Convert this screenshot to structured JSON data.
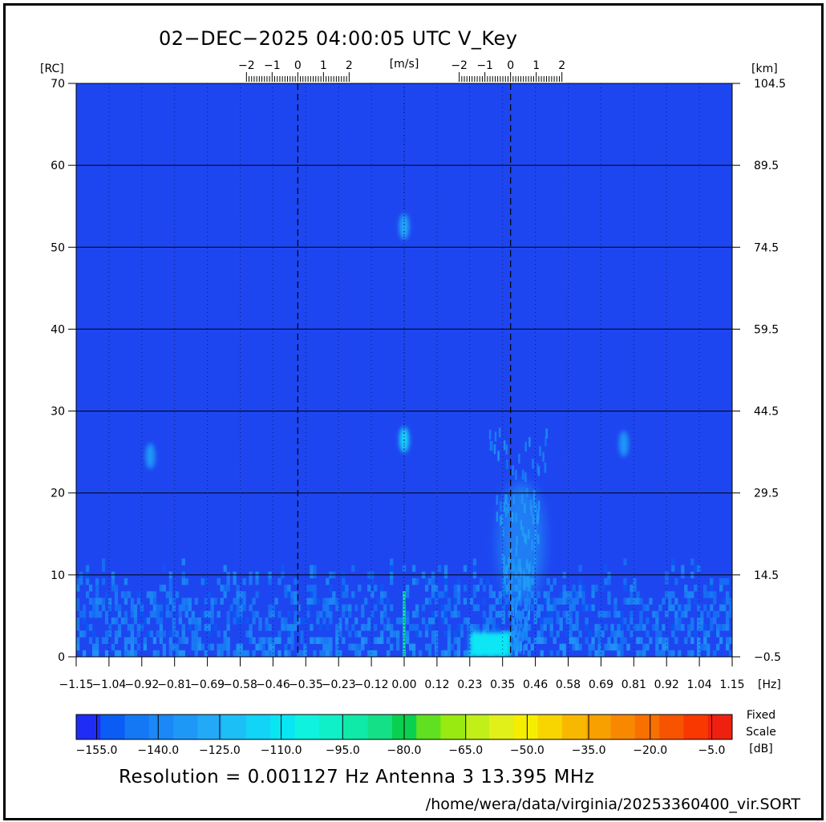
{
  "title": "02−DEC−2025 04:00:05 UTC   V_Key",
  "footer": {
    "resolution": "Resolution = 0.001127 Hz   Antenna  3   13.395 MHz",
    "path": "/home/wera/data/virginia/20253360400_vir.SORT"
  },
  "colors": {
    "background_field": "#1e46f0",
    "colorbar": [
      "#1f2cf5",
      "#0a5cf5",
      "#1478f5",
      "#1a88f6",
      "#1e98f7",
      "#22aaf8",
      "#1cc0f7",
      "#12d4f7",
      "#08e6f4",
      "#10f2e0",
      "#10f0c8",
      "#10eaa8",
      "#14e088",
      "#0ad050",
      "#60e020",
      "#98ea10",
      "#c0f018",
      "#e0f018",
      "#f6ee00",
      "#f8d400",
      "#f8b800",
      "#f8a000",
      "#f88800",
      "#f87000",
      "#f85400",
      "#f83800",
      "#f02010"
    ]
  },
  "chart_data": {
    "type": "heatmap",
    "title": "02−DEC−2025 04:00:05 UTC   V_Key",
    "xlabel": "[Hz]",
    "x_unit_label": "[Hz]",
    "ylabel_left": "[RC]",
    "ylabel_right": "[km]",
    "top_axis_label": "[m/s]",
    "xlim": [
      -1.15,
      1.15
    ],
    "ylim": [
      0,
      70
    ],
    "x_ticks": [
      "−1.15",
      "−1.04",
      "−0.92",
      "−0.81",
      "−0.69",
      "−0.58",
      "−0.46",
      "−0.35",
      "−0.23",
      "−0.12",
      "0.00",
      "0.12",
      "0.23",
      "0.35",
      "0.46",
      "0.58",
      "0.69",
      "0.81",
      "0.92",
      "1.04",
      "1.15"
    ],
    "x_tick_values": [
      -1.15,
      -1.035,
      -0.92,
      -0.805,
      -0.69,
      -0.575,
      -0.46,
      -0.345,
      -0.23,
      -0.115,
      0.0,
      0.115,
      0.23,
      0.345,
      0.46,
      0.575,
      0.69,
      0.805,
      0.92,
      1.035,
      1.15
    ],
    "y_ticks_left": [
      "0",
      "10",
      "20",
      "30",
      "40",
      "50",
      "60",
      "70"
    ],
    "y_tick_values": [
      0,
      10,
      20,
      30,
      40,
      50,
      60,
      70
    ],
    "y_ticks_right": [
      "−0.5",
      "14.5",
      "29.5",
      "44.5",
      "59.5",
      "74.5",
      "89.5",
      "104.5"
    ],
    "bragg_lines_hz": [
      -0.373,
      0.373
    ],
    "top_axes": [
      {
        "center_hz": -0.373,
        "labels": [
          "−2",
          "−1",
          "0",
          "1",
          "2"
        ],
        "values": [
          -2,
          -1,
          0,
          1,
          2
        ],
        "hz_per_unit": 0.09
      },
      {
        "center_hz": 0.373,
        "labels": [
          "−2",
          "−1",
          "0",
          "1",
          "2"
        ],
        "values": [
          -2,
          -1,
          0,
          1,
          2
        ],
        "hz_per_unit": 0.09
      }
    ],
    "grid": true,
    "colorbar": {
      "ticks": [
        "−155.0",
        "−140.0",
        "−125.0",
        "−110.0",
        "−95.0",
        "−80.0",
        "−65.0",
        "−50.0",
        "−35.0",
        "−20.0",
        "−5.0"
      ],
      "tick_values": [
        -155,
        -140,
        -125,
        -110,
        -95,
        -80,
        -65,
        -50,
        -35,
        -20,
        -5
      ],
      "range_db": [
        -160,
        0
      ],
      "label_lines": [
        "Fixed",
        "Scale",
        "[dB]"
      ]
    },
    "features": [
      {
        "x_hz": 0.0,
        "y_rc": 52.5,
        "db": -128,
        "note": "narrow blob"
      },
      {
        "x_hz": 0.0,
        "y_rc": 26.5,
        "db": -118,
        "note": "narrow blob"
      },
      {
        "x_hz": 0.0,
        "y_rc": 1.5,
        "db": -90,
        "note": "zero-Doppler line"
      },
      {
        "x_hz": 0.35,
        "y_rc": 1.5,
        "db": -112,
        "note": "bragg region near range"
      },
      {
        "x_hz": 0.41,
        "y_rc": 14.0,
        "db": -128,
        "note": "bragg plume"
      },
      {
        "x_hz": -0.89,
        "y_rc": 24.5,
        "db": -135,
        "note": "weak blob"
      },
      {
        "x_hz": 0.77,
        "y_rc": 26.0,
        "db": -135,
        "note": "weak blob"
      }
    ]
  }
}
